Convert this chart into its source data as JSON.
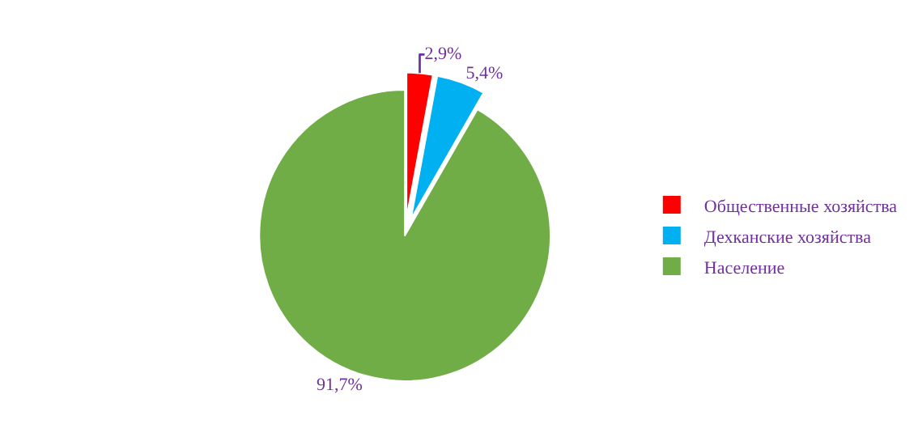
{
  "chart_data": {
    "type": "pie",
    "categories": [
      "Общественные хозяйства",
      "Дехканские хозяйства",
      "Население"
    ],
    "values": [
      2.9,
      5.4,
      91.7
    ],
    "colors": [
      "#ff0000",
      "#00b0f0",
      "#70ad47"
    ],
    "value_labels": [
      "2,9%",
      "5,4%",
      "91,7%"
    ],
    "legend": "right"
  }
}
